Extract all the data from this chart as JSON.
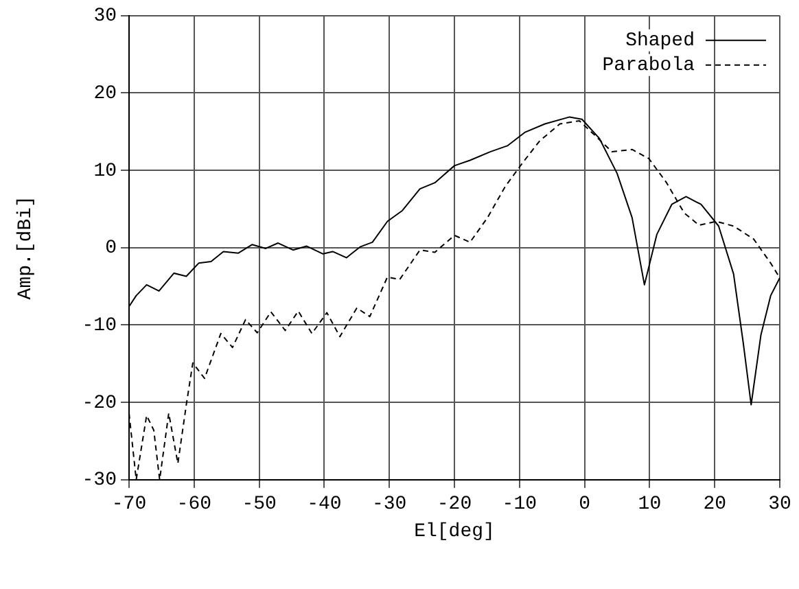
{
  "chart_data": {
    "type": "line",
    "xlabel": "El[deg]",
    "ylabel": "Amp.[dBi]",
    "xlim": [
      -70,
      30
    ],
    "ylim": [
      -30,
      30
    ],
    "xticks": [
      -70,
      -60,
      -50,
      -40,
      -30,
      -20,
      -10,
      0,
      10,
      20,
      30
    ],
    "yticks": [
      -30,
      -20,
      -10,
      0,
      10,
      20,
      30
    ],
    "grid": true,
    "legend": "top right",
    "marker": "none",
    "series": [
      {
        "name": "Shaped",
        "color": "#000000",
        "line_style": "solid",
        "x": [
          -70,
          -68.9,
          -67.3,
          -65.4,
          -63.1,
          -61.2,
          -59.3,
          -57.4,
          -55.5,
          -53.2,
          -51.1,
          -49.0,
          -47.1,
          -44.8,
          -42.7,
          -40.2,
          -38.7,
          -36.6,
          -34.5,
          -32.6,
          -30.3,
          -28.0,
          -25.3,
          -23.0,
          -20.0,
          -17.6,
          -14.5,
          -11.8,
          -9.2,
          -6.1,
          -2.3,
          -0.4,
          2.3,
          5.0,
          7.3,
          9.2,
          11.1,
          13.4,
          15.6,
          17.9,
          20.6,
          22.9,
          24.4,
          25.6,
          27.1,
          28.6,
          30
        ],
        "values": [
          -7.6,
          -6.2,
          -4.8,
          -5.6,
          -3.3,
          -3.7,
          -2.0,
          -1.8,
          -0.5,
          -0.7,
          0.4,
          -0.1,
          0.6,
          -0.3,
          0.2,
          -0.8,
          -0.5,
          -1.3,
          0.1,
          0.7,
          3.4,
          4.8,
          7.6,
          8.4,
          10.6,
          11.3,
          12.4,
          13.2,
          14.9,
          16.0,
          16.9,
          16.6,
          14.1,
          9.6,
          3.9,
          -4.8,
          1.7,
          5.6,
          6.6,
          5.6,
          2.8,
          -3.4,
          -12.4,
          -20.3,
          -11.3,
          -6.2,
          -3.9
        ]
      },
      {
        "name": "Parabola",
        "color": "#000000",
        "line_style": "dashed",
        "x": [
          -70,
          -68.9,
          -67.3,
          -66.2,
          -65.3,
          -63.9,
          -62.5,
          -61.2,
          -60.2,
          -58.4,
          -55.9,
          -54.1,
          -52.1,
          -50.3,
          -48.2,
          -46.0,
          -44.0,
          -41.9,
          -39.6,
          -37.6,
          -35.0,
          -33.0,
          -30.3,
          -28.4,
          -25.3,
          -23.0,
          -20.0,
          -17.6,
          -14.9,
          -12.2,
          -9.5,
          -6.9,
          -3.8,
          -0.8,
          1.5,
          4.2,
          7.3,
          9.9,
          12.6,
          15.3,
          17.6,
          20.2,
          22.9,
          26.0,
          28.6,
          30
        ],
        "values": [
          -21.4,
          -30,
          -21.7,
          -23.6,
          -30,
          -21.4,
          -27.9,
          -20.3,
          -14.9,
          -16.9,
          -11.1,
          -12.9,
          -9.3,
          -11.0,
          -8.3,
          -10.7,
          -8.2,
          -11.1,
          -8.4,
          -11.5,
          -7.8,
          -8.9,
          -3.8,
          -4.1,
          -0.3,
          -0.6,
          1.6,
          0.7,
          3.9,
          7.9,
          11.0,
          13.8,
          16.0,
          16.4,
          14.6,
          12.4,
          12.7,
          11.5,
          8.4,
          4.5,
          2.9,
          3.4,
          2.8,
          1.1,
          -2.0,
          -3.9
        ]
      }
    ]
  }
}
